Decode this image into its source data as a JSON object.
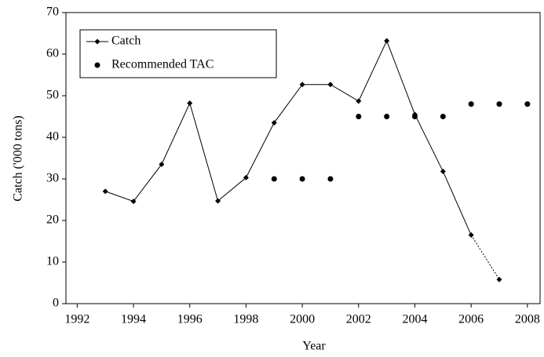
{
  "chart_data": {
    "type": "line",
    "xlabel": "Year",
    "ylabel": "Catch ('000 tons)",
    "xlim": [
      1991.6,
      2008.45
    ],
    "xticks": [
      1992,
      1994,
      1996,
      1998,
      2000,
      2002,
      2004,
      2006,
      2008
    ],
    "ylim": [
      0,
      70
    ],
    "yticks": [
      0,
      10,
      20,
      30,
      40,
      50,
      60,
      70
    ],
    "legend": "upper left",
    "series": [
      {
        "name": "Catch",
        "type": "line",
        "color": "#000000",
        "marker": "diamond",
        "dotted_last_segment": true,
        "x": [
          1993,
          1994,
          1995,
          1996,
          1997,
          1998,
          1999,
          2000,
          2001,
          2002,
          2003,
          2004,
          2005,
          2006,
          2007
        ],
        "values": [
          27,
          24.6,
          33.5,
          48.2,
          24.7,
          30.3,
          43.5,
          52.7,
          52.7,
          48.7,
          63.2,
          45.5,
          31.8,
          16.5,
          5.8
        ]
      },
      {
        "name": "Recommended TAC",
        "type": "scatter",
        "color": "#000000",
        "marker": "circle",
        "x": [
          1999,
          2000,
          2001,
          2002,
          2003,
          2004,
          2005,
          2006,
          2007,
          2008
        ],
        "values": [
          30,
          30,
          30,
          45,
          45,
          45,
          45,
          48,
          48,
          48
        ]
      }
    ]
  }
}
